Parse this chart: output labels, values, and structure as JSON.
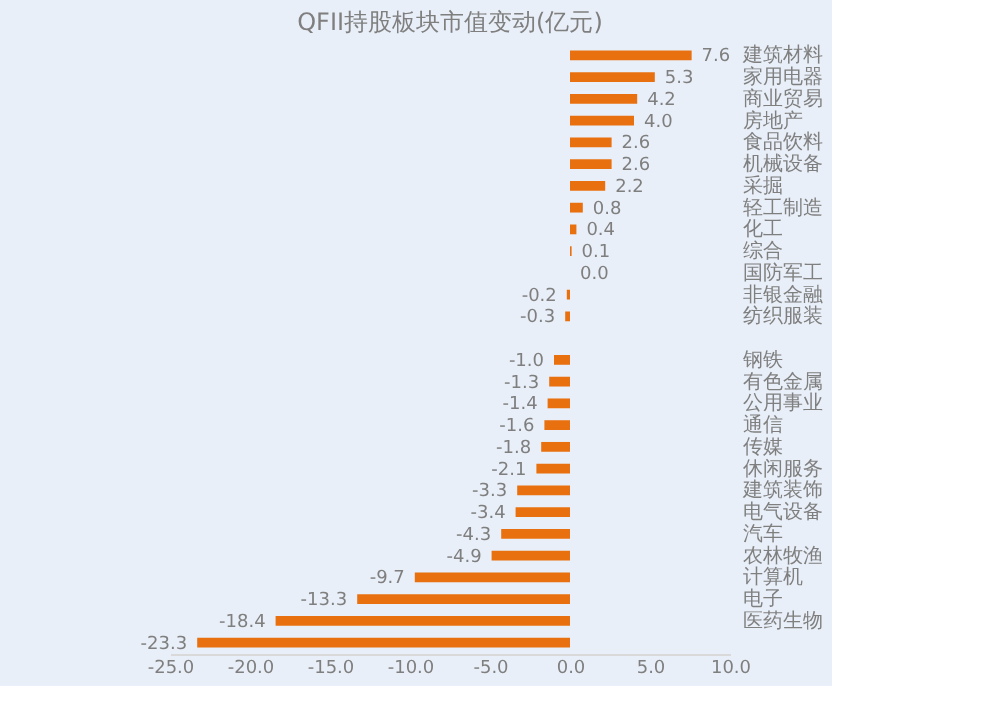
{
  "chart_data": {
    "type": "bar",
    "orientation": "horizontal",
    "title": "QFII持股板块市值变动(亿元)",
    "categories": [
      "建筑材料",
      "家用电器",
      "商业贸易",
      "房地产",
      "食品饮料",
      "机械设备",
      "采掘",
      "轻工制造",
      "化工",
      "综合",
      "国防军工",
      "非银金融",
      "纺织服装",
      null,
      "钢铁",
      "有色金属",
      "公用事业",
      "通信",
      "传媒",
      "休闲服务",
      "建筑装饰",
      "电气设备",
      "汽车",
      "农林牧渔",
      "计算机",
      "电子",
      "医药生物",
      null
    ],
    "values": [
      7.6,
      5.3,
      4.2,
      4.0,
      2.6,
      2.6,
      2.2,
      0.8,
      0.4,
      0.1,
      0.0,
      -0.2,
      -0.3,
      null,
      -1.0,
      -1.3,
      -1.4,
      -1.6,
      -1.8,
      -2.1,
      -3.3,
      -3.4,
      -4.3,
      -4.9,
      -9.7,
      -13.3,
      -18.4,
      -23.3
    ],
    "value_labels": [
      "7.6",
      "5.3",
      "4.2",
      "4.0",
      "2.6",
      "2.6",
      "2.2",
      "0.8",
      "0.4",
      "0.1",
      "0.0",
      "-0.2",
      "-0.3",
      null,
      "-1.0",
      "-1.3",
      "-1.4",
      "-1.6",
      "-1.8",
      "-2.1",
      "-3.3",
      "-3.4",
      "-4.3",
      "-4.9",
      "-9.7",
      "-13.3",
      "-18.4",
      "-23.3"
    ],
    "color": "#e8700f",
    "xlim": [
      -25,
      10
    ],
    "xticks": [
      {
        "value": -25,
        "label": "-25.0"
      },
      {
        "value": -20,
        "label": "-20.0"
      },
      {
        "value": -15,
        "label": "-15.0"
      },
      {
        "value": -10,
        "label": "-10.0"
      },
      {
        "value": -5,
        "label": "-5.0"
      },
      {
        "value": 0,
        "label": "0.0"
      },
      {
        "value": 5,
        "label": "5.0"
      },
      {
        "value": 10,
        "label": "10.0"
      }
    ],
    "grid": false
  }
}
